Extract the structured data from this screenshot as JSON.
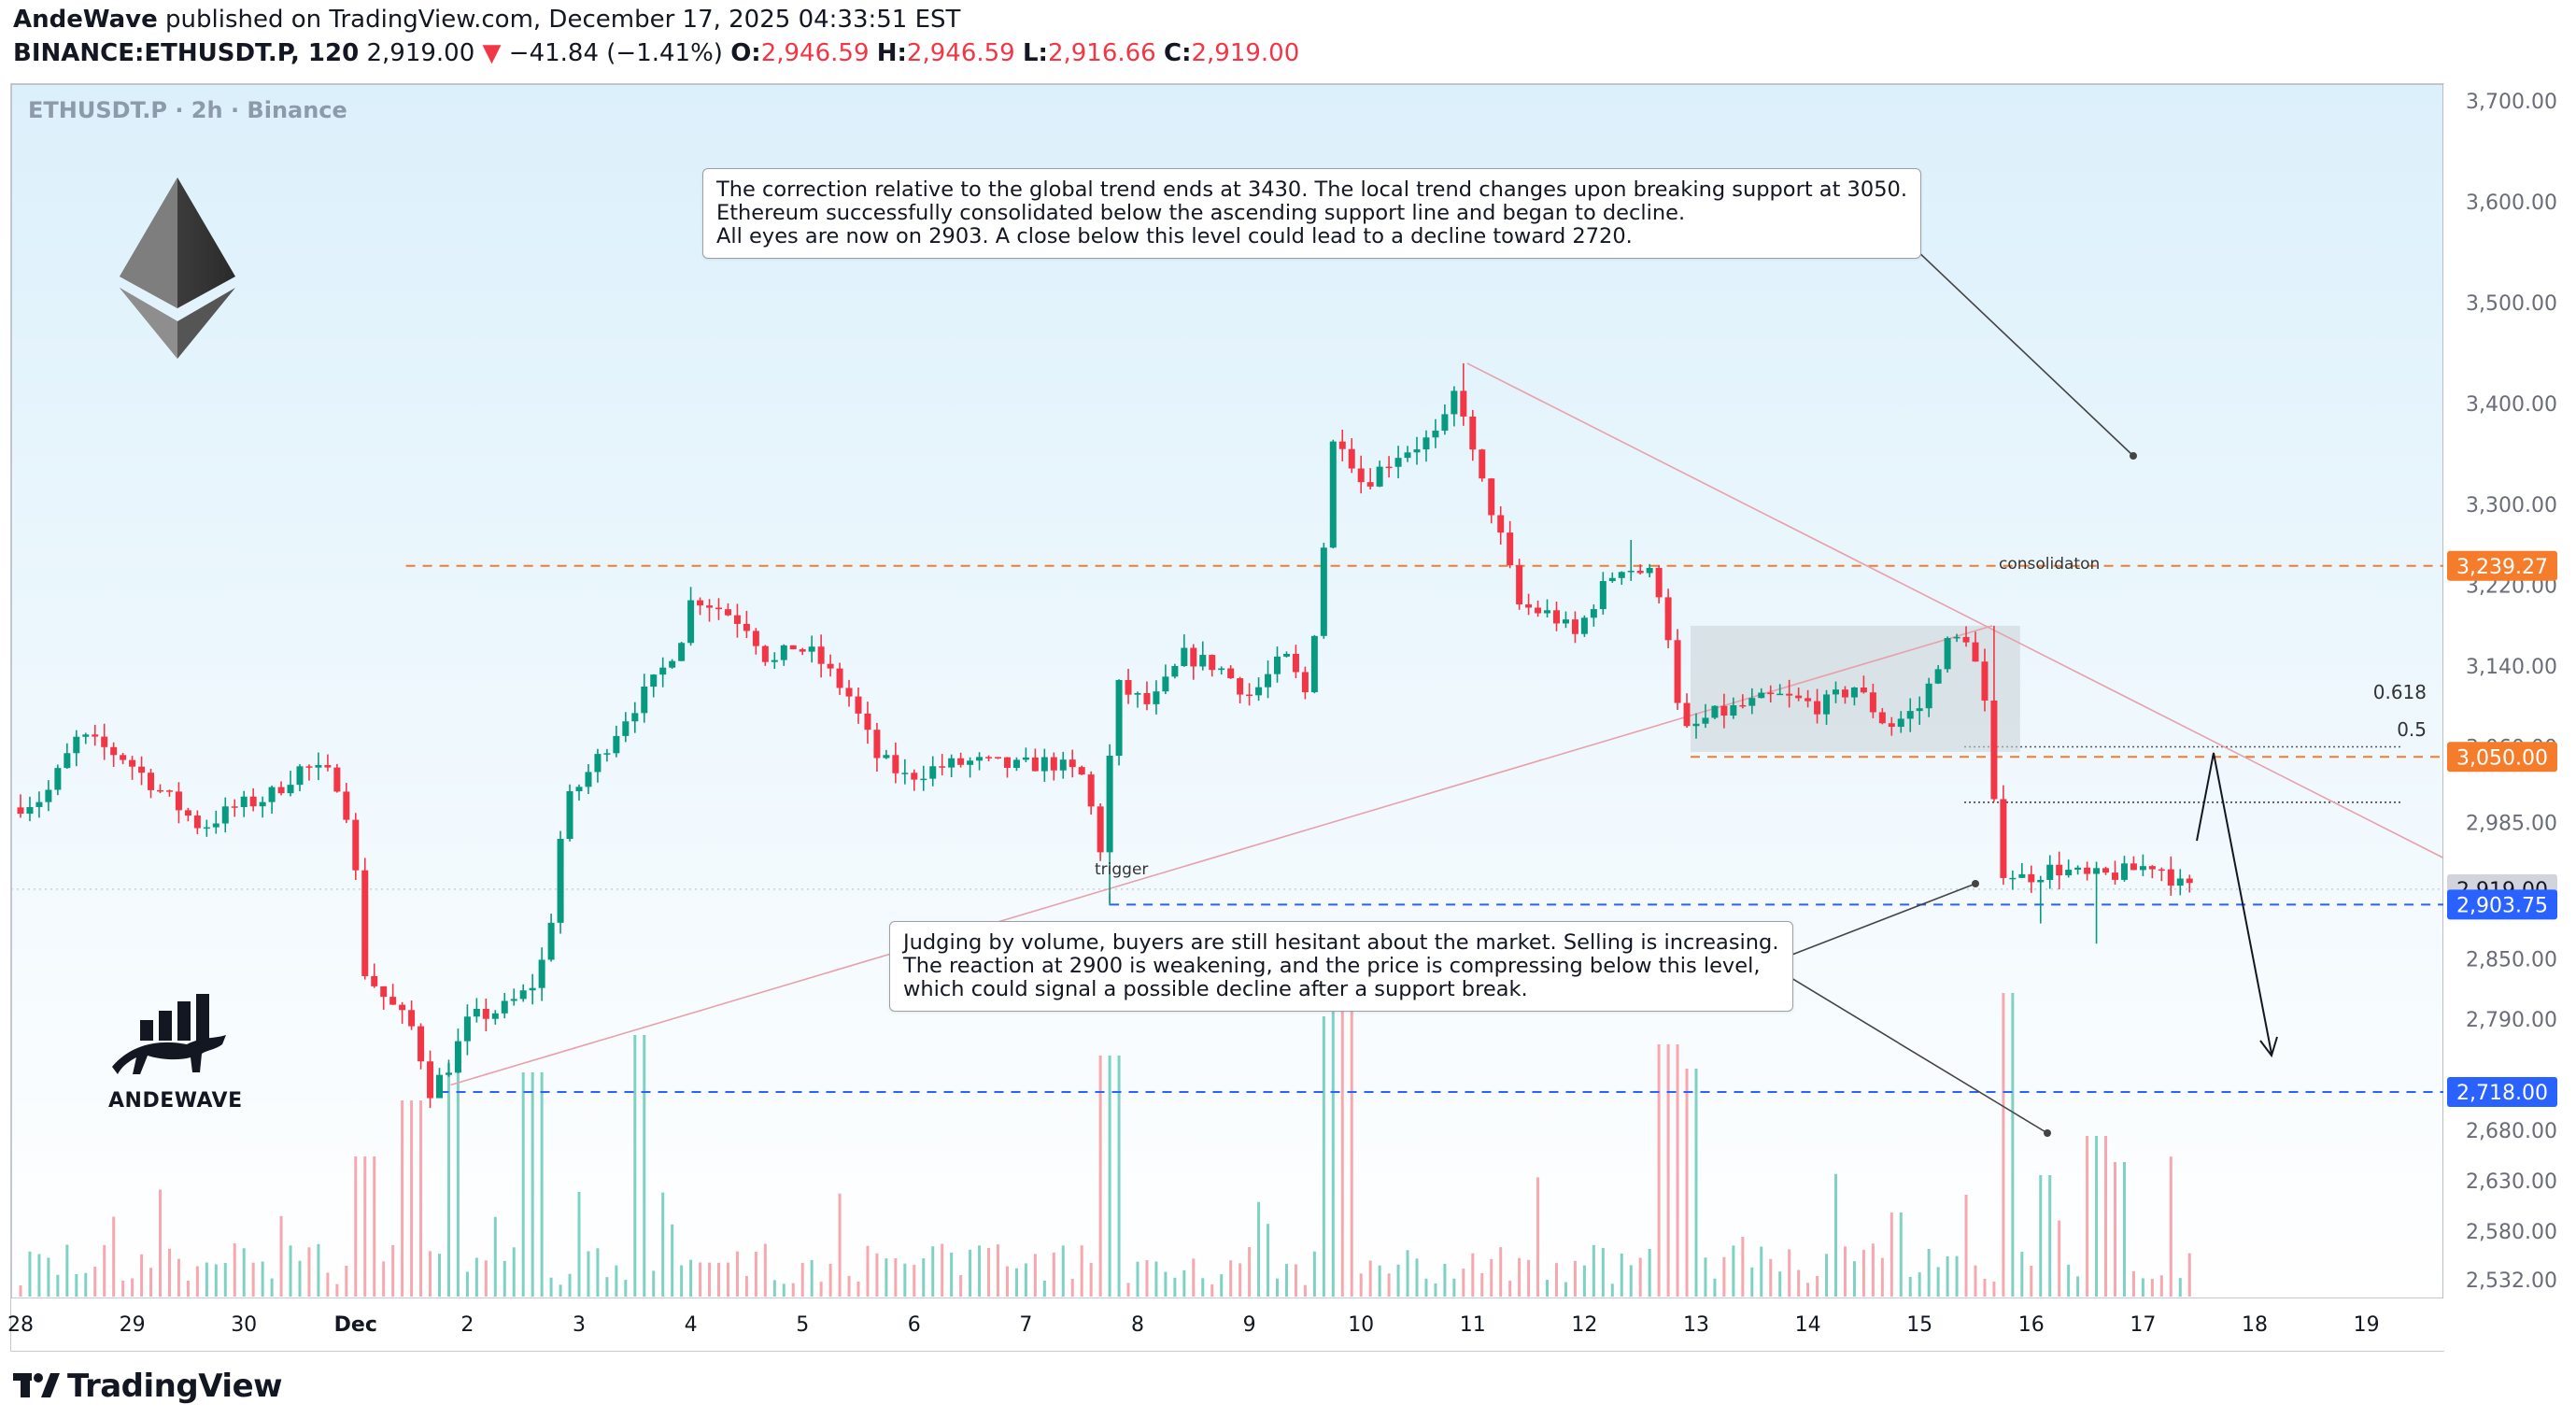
{
  "header": {
    "author": "AndeWave",
    "published_text": "published on TradingView.com, December 17, 2025 04:33:51 EST",
    "symbol": "BINANCE:ETHUSDT.P, 120",
    "last": "2,919.00",
    "arrow": "▼",
    "change": "−41.84 (−1.41%)",
    "o_label": "O:",
    "o": "2,946.59",
    "h_label": "H:",
    "h": "2,946.59",
    "l_label": "L:",
    "l": "2,916.66",
    "c_label": "C:",
    "c": "2,919.00"
  },
  "watermark": "ETHUSDT.P · 2h · Binance",
  "notes": {
    "top": [
      "The correction relative to the global trend ends at 3430. The local trend changes upon breaking support at 3050.",
      "Ethereum successfully consolidated below the ascending support line and began to decline.",
      "All eyes are now on 2903. A close below this level could lead to a decline toward 2720."
    ],
    "bottom": [
      "Judging by volume, buyers are still hesitant about the market. Selling is increasing.",
      "The reaction at 2900 is weakening, and the price is compressing below this level,",
      "which could signal a possible decline after a support break."
    ]
  },
  "annotations": {
    "trigger": "trigger",
    "consolidation": "consolidaton",
    "fib_618": "0.618",
    "fib_5": "0.5"
  },
  "brand": {
    "andewave": "ANDEWAVE",
    "tradingview": "TradingView"
  },
  "price_labels": {
    "resistance": "3,239.27",
    "support_3050": "3,050.00",
    "last": "2,919.00",
    "support_2903": "2,903.75",
    "target": "2,718.00"
  },
  "colors": {
    "up": "#089981",
    "down": "#f23645",
    "bg_top": "#e6f4fb",
    "bg_bottom": "#ffffff",
    "orange": "#f57c2b",
    "blue": "#2962ff",
    "trend": "#e8a0aa"
  },
  "chart_data": {
    "type": "candlestick",
    "symbol": "BINANCE:ETHUSDT.P",
    "timeframe": "2h",
    "y_axis_ticks": [
      "3,700.00",
      "3,600.00",
      "3,500.00",
      "3,400.00",
      "3,300.00",
      "3,220.00",
      "3,140.00",
      "3,060.00",
      "2,985.00",
      "2,919.00",
      "2,850.00",
      "2,790.00",
      "2,720.00",
      "2,680.00",
      "2,630.00",
      "2,580.00",
      "2,532.00"
    ],
    "x_axis_ticks": [
      "28",
      "29",
      "30",
      "Dec",
      "2",
      "3",
      "4",
      "5",
      "6",
      "7",
      "8",
      "9",
      "10",
      "11",
      "12",
      "13",
      "14",
      "15",
      "16",
      "17",
      "18",
      "19"
    ],
    "ylim": [
      2510,
      3720
    ],
    "ohlc_key_points": [
      {
        "date": "Nov 28",
        "price": 3020
      },
      {
        "date": "Nov 29",
        "price": 3060
      },
      {
        "date": "Nov 30",
        "price": 3000
      },
      {
        "date": "Dec 1",
        "price": 2720
      },
      {
        "date": "Dec 2",
        "price": 2790
      },
      {
        "date": "Dec 3",
        "price": 3070
      },
      {
        "date": "Dec 4",
        "price": 3239
      },
      {
        "date": "Dec 5",
        "price": 3160
      },
      {
        "date": "Dec 6",
        "price": 3030
      },
      {
        "date": "Dec 7",
        "price": 3040
      },
      {
        "date": "Dec 7",
        "price": 2903
      },
      {
        "date": "Dec 8",
        "price": 3130
      },
      {
        "date": "Dec 9",
        "price": 3110
      },
      {
        "date": "Dec 10",
        "price": 3320
      },
      {
        "date": "Dec 10",
        "price": 3440
      },
      {
        "date": "Dec 11",
        "price": 3180
      },
      {
        "date": "Dec 12",
        "price": 3239
      },
      {
        "date": "Dec 13",
        "price": 3060
      },
      {
        "date": "Dec 14",
        "price": 3110
      },
      {
        "date": "Dec 15",
        "price": 3180
      },
      {
        "date": "Dec 16",
        "price": 2930
      },
      {
        "date": "Dec 17",
        "price": 2919
      }
    ],
    "levels": {
      "resistance": 3239.27,
      "support_3050": 3050.0,
      "fib_0_618": 3060,
      "fib_0_5": 3005,
      "support_2903": 2903.75,
      "target": 2718.0
    }
  }
}
